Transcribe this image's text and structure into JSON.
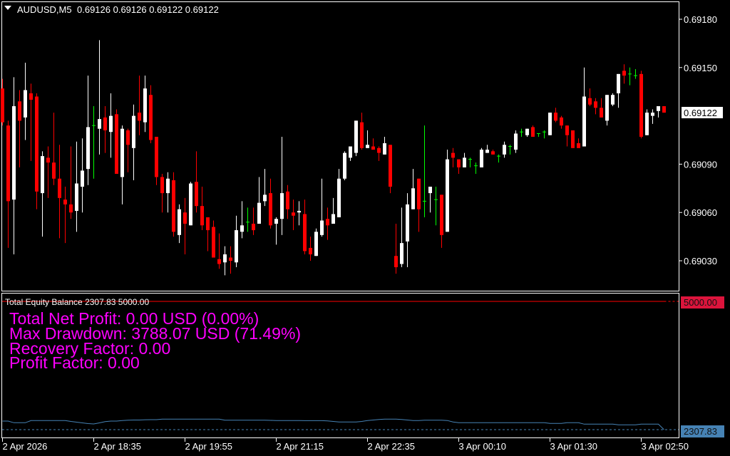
{
  "header": {
    "symbol": "AUDUSD,M5",
    "ohlc": "0.69126 0.69126 0.69122 0.69122",
    "menu_icon": "triangle-down-icon"
  },
  "colors": {
    "background": "#000000",
    "frame": "#ffffff",
    "bull": "#ffffff",
    "bear": "#ff0000",
    "doji": "#00ff00",
    "balance": "#ff0000",
    "equity": "#4682b4",
    "balance_label": "#dc143c",
    "stats_text": "#ff00ff"
  },
  "price_axis": {
    "labels": [
      "0.69180",
      "0.69150",
      "0.69090",
      "0.69060",
      "0.69030"
    ],
    "current_price": "0.69122",
    "range": [
      0.6903,
      0.6918
    ]
  },
  "time_axis": {
    "labels": [
      "2 Apr 2026",
      "2 Apr 18:35",
      "2 Apr 19:55",
      "2 Apr 21:15",
      "2 Apr 22:35",
      "3 Apr 00:10",
      "3 Apr 01:30",
      "3 Apr 02:50"
    ]
  },
  "candles": [
    [
      0.69137,
      0.69143,
      0.69114,
      0.69116
    ],
    [
      0.69114,
      0.69117,
      0.69038,
      0.69067
    ],
    [
      0.69068,
      0.69144,
      0.69034,
      0.69126
    ],
    [
      0.69129,
      0.69136,
      0.69088,
      0.69117
    ],
    [
      0.69119,
      0.69153,
      0.69105,
      0.69136
    ],
    [
      0.69134,
      0.6914,
      0.69092,
      0.6913
    ],
    [
      0.69132,
      0.69134,
      0.69062,
      0.69073
    ],
    [
      0.69072,
      0.69098,
      0.69045,
      0.69095
    ],
    [
      0.69094,
      0.69101,
      0.69069,
      0.69091
    ],
    [
      0.69091,
      0.69122,
      0.69077,
      0.69081
    ],
    [
      0.69081,
      0.69102,
      0.69044,
      0.69069
    ],
    [
      0.69068,
      0.69076,
      0.69041,
      0.69065
    ],
    [
      0.69065,
      0.69101,
      0.69056,
      0.6906
    ],
    [
      0.69061,
      0.69104,
      0.69048,
      0.69078
    ],
    [
      0.69076,
      0.69106,
      0.6906,
      0.69086
    ],
    [
      0.69087,
      0.69145,
      0.69077,
      0.69113
    ],
    [
      0.69114,
      0.69126,
      0.69081,
      0.69114
    ],
    [
      0.69112,
      0.69167,
      0.69096,
      0.69118
    ],
    [
      0.69119,
      0.69126,
      0.69097,
      0.69111
    ],
    [
      0.6911,
      0.69134,
      0.69094,
      0.6912
    ],
    [
      0.69121,
      0.69124,
      0.69084,
      0.69084
    ],
    [
      0.69082,
      0.69114,
      0.69065,
      0.69112
    ],
    [
      0.69111,
      0.69112,
      0.69085,
      0.69102
    ],
    [
      0.691,
      0.69127,
      0.6908,
      0.6912
    ],
    [
      0.69122,
      0.69145,
      0.69108,
      0.69117
    ],
    [
      0.69116,
      0.69145,
      0.6911,
      0.69137
    ],
    [
      0.69133,
      0.69139,
      0.69103,
      0.69105
    ],
    [
      0.69107,
      0.69107,
      0.69077,
      0.69082
    ],
    [
      0.69082,
      0.69084,
      0.6906,
      0.69072
    ],
    [
      0.69072,
      0.69085,
      0.6906,
      0.69081
    ],
    [
      0.6908,
      0.69085,
      0.69045,
      0.69048
    ],
    [
      0.69046,
      0.69065,
      0.69041,
      0.69062
    ],
    [
      0.6906,
      0.69069,
      0.69034,
      0.69053
    ],
    [
      0.69052,
      0.69079,
      0.69052,
      0.69078
    ],
    [
      0.69079,
      0.69098,
      0.6906,
      0.69064
    ],
    [
      0.69064,
      0.69076,
      0.69049,
      0.69052
    ],
    [
      0.69057,
      0.69057,
      0.69036,
      0.69049
    ],
    [
      0.69051,
      0.69055,
      0.69032,
      0.69032
    ],
    [
      0.69031,
      0.69047,
      0.69025,
      0.69028
    ],
    [
      0.69029,
      0.69039,
      0.69021,
      0.69034
    ],
    [
      0.69032,
      0.69039,
      0.69022,
      0.6903
    ],
    [
      0.69029,
      0.69058,
      0.69026,
      0.69049
    ],
    [
      0.69048,
      0.69067,
      0.69044,
      0.69052
    ],
    [
      0.69054,
      0.69063,
      0.69048,
      0.69054
    ],
    [
      0.69053,
      0.69063,
      0.69046,
      0.69049
    ],
    [
      0.69053,
      0.69082,
      0.69053,
      0.69066
    ],
    [
      0.69067,
      0.69087,
      0.69064,
      0.69071
    ],
    [
      0.69072,
      0.69081,
      0.6905,
      0.69052
    ],
    [
      0.69053,
      0.69057,
      0.6904,
      0.69056
    ],
    [
      0.69056,
      0.69107,
      0.69046,
      0.69072
    ],
    [
      0.69073,
      0.69077,
      0.69056,
      0.69062
    ],
    [
      0.6906,
      0.69068,
      0.69049,
      0.69058
    ],
    [
      0.6906,
      0.69067,
      0.69052,
      0.69061
    ],
    [
      0.69059,
      0.69068,
      0.69034,
      0.69036
    ],
    [
      0.69038,
      0.69045,
      0.6903,
      0.69034
    ],
    [
      0.69033,
      0.6905,
      0.69033,
      0.69048
    ],
    [
      0.69046,
      0.69081,
      0.69045,
      0.69055
    ],
    [
      0.69056,
      0.69063,
      0.69043,
      0.69052
    ],
    [
      0.69053,
      0.69069,
      0.69053,
      0.69059
    ],
    [
      0.69057,
      0.69087,
      0.69057,
      0.69081
    ],
    [
      0.69081,
      0.69098,
      0.6908,
      0.69097
    ],
    [
      0.69094,
      0.69101,
      0.69092,
      0.69101
    ],
    [
      0.69097,
      0.69117,
      0.69095,
      0.69117
    ],
    [
      0.69116,
      0.69122,
      0.69099,
      0.691
    ],
    [
      0.691,
      0.69111,
      0.691,
      0.69102
    ],
    [
      0.69101,
      0.69106,
      0.69099,
      0.69099
    ],
    [
      0.691,
      0.69101,
      0.69092,
      0.69097
    ],
    [
      0.69096,
      0.69107,
      0.69096,
      0.69103
    ],
    [
      0.69102,
      0.69102,
      0.69072,
      0.69076
    ],
    [
      0.69033,
      0.69053,
      0.69022,
      0.69026
    ],
    [
      0.69028,
      0.69063,
      0.69026,
      0.69041
    ],
    [
      0.69042,
      0.69072,
      0.69026,
      0.69065
    ],
    [
      0.69062,
      0.69087,
      0.69062,
      0.69075
    ],
    [
      0.69081,
      0.69081,
      0.69048,
      0.69062
    ],
    [
      0.69067,
      0.69114,
      0.69057,
      0.69067
    ],
    [
      0.69072,
      0.69076,
      0.6906,
      0.69076
    ],
    [
      0.69068,
      0.69076,
      0.69052,
      0.69068
    ],
    [
      0.69071,
      0.69071,
      0.69038,
      0.69046
    ],
    [
      0.69048,
      0.69099,
      0.69048,
      0.69093
    ],
    [
      0.69097,
      0.691,
      0.69088,
      0.69094
    ],
    [
      0.69093,
      0.69093,
      0.69084,
      0.69088
    ],
    [
      0.69088,
      0.69097,
      0.69088,
      0.69094
    ],
    [
      0.69093,
      0.69094,
      0.69088,
      0.69093
    ],
    [
      0.69089,
      0.69091,
      0.69084,
      0.69089
    ],
    [
      0.69088,
      0.691,
      0.69088,
      0.69099
    ],
    [
      0.69097,
      0.69102,
      0.69097,
      0.69099
    ],
    [
      0.69098,
      0.69099,
      0.69096,
      0.69096
    ],
    [
      0.69095,
      0.69096,
      0.69091,
      0.69095
    ],
    [
      0.69096,
      0.69104,
      0.69094,
      0.69102
    ],
    [
      0.69101,
      0.69102,
      0.69096,
      0.69101
    ],
    [
      0.69099,
      0.69111,
      0.69097,
      0.69109
    ],
    [
      0.6911,
      0.69112,
      0.69107,
      0.6911
    ],
    [
      0.69108,
      0.69112,
      0.69107,
      0.69112
    ],
    [
      0.69113,
      0.69114,
      0.69107,
      0.69107
    ],
    [
      0.69109,
      0.69109,
      0.69107,
      0.69109
    ],
    [
      0.6911,
      0.69111,
      0.69106,
      0.6911
    ],
    [
      0.69108,
      0.69122,
      0.69108,
      0.69122
    ],
    [
      0.69122,
      0.69125,
      0.69116,
      0.69117
    ],
    [
      0.69119,
      0.6912,
      0.69112,
      0.69114
    ],
    [
      0.69114,
      0.69114,
      0.69101,
      0.69108
    ],
    [
      0.69111,
      0.69111,
      0.691,
      0.691
    ],
    [
      0.69103,
      0.69106,
      0.691,
      0.691
    ],
    [
      0.69101,
      0.6915,
      0.69101,
      0.69132
    ],
    [
      0.69131,
      0.69137,
      0.69126,
      0.69127
    ],
    [
      0.69129,
      0.69131,
      0.69121,
      0.69125
    ],
    [
      0.69125,
      0.69131,
      0.69119,
      0.69119
    ],
    [
      0.69117,
      0.69133,
      0.69114,
      0.69133
    ],
    [
      0.69127,
      0.69134,
      0.69126,
      0.69133
    ],
    [
      0.69134,
      0.69146,
      0.69125,
      0.69146
    ],
    [
      0.69148,
      0.69152,
      0.6914,
      0.69145
    ],
    [
      0.69146,
      0.6915,
      0.69139,
      0.69146
    ],
    [
      0.69145,
      0.69149,
      0.69143,
      0.69145
    ],
    [
      0.69146,
      0.69148,
      0.69106,
      0.69107
    ],
    [
      0.69108,
      0.69124,
      0.69108,
      0.69122
    ],
    [
      0.6912,
      0.69124,
      0.69115,
      0.69122
    ],
    [
      0.69123,
      0.69126,
      0.69119,
      0.69126
    ],
    [
      0.69126,
      0.69126,
      0.69122,
      0.69122
    ]
  ],
  "indicator": {
    "title": "Total Equity Balance 2307.83 5000.00",
    "balance_label": "5000.00",
    "equity_label": "2307.83",
    "balance": 5000.0,
    "equity_current": 2307.83,
    "stats": [
      "Total Net Profit: 0.00 USD (0.00%)",
      "Max Drawdown: 3788.07 USD (71.49%)",
      "Recovery Factor: 0.00",
      "Profit Factor: 0.00"
    ],
    "equity_series": [
      2487,
      2487,
      2453,
      2453,
      2453,
      2498,
      2498,
      2498,
      2498,
      2498,
      2498,
      2498,
      2480,
      2465,
      2450,
      2435,
      2427,
      2450,
      2475,
      2487,
      2487,
      2500,
      2505,
      2510,
      2510,
      2515,
      2517,
      2517,
      2527,
      2527,
      2527,
      2527,
      2527,
      2527,
      2527,
      2527,
      2527,
      2527,
      2527,
      2507,
      2507,
      2507,
      2507,
      2507,
      2507,
      2505,
      2505,
      2502,
      2500,
      2500,
      2498,
      2498,
      2498,
      2497,
      2497,
      2497,
      2497,
      2490,
      2480,
      2470,
      2468,
      2468,
      2470,
      2480,
      2498,
      2510,
      2520,
      2527,
      2527,
      2527,
      2520,
      2510,
      2498,
      2500,
      2505,
      2505,
      2505,
      2507,
      2500,
      2470,
      2453,
      2453,
      2453,
      2453,
      2453,
      2453,
      2453,
      2453,
      2453,
      2453,
      2453,
      2453,
      2453,
      2453,
      2453,
      2453,
      2438,
      2438,
      2438,
      2453,
      2453,
      2453,
      2423,
      2423,
      2423,
      2423,
      2423,
      2423,
      2408,
      2408,
      2408,
      2408,
      2423,
      2423,
      2423,
      2423,
      2307.83
    ]
  }
}
